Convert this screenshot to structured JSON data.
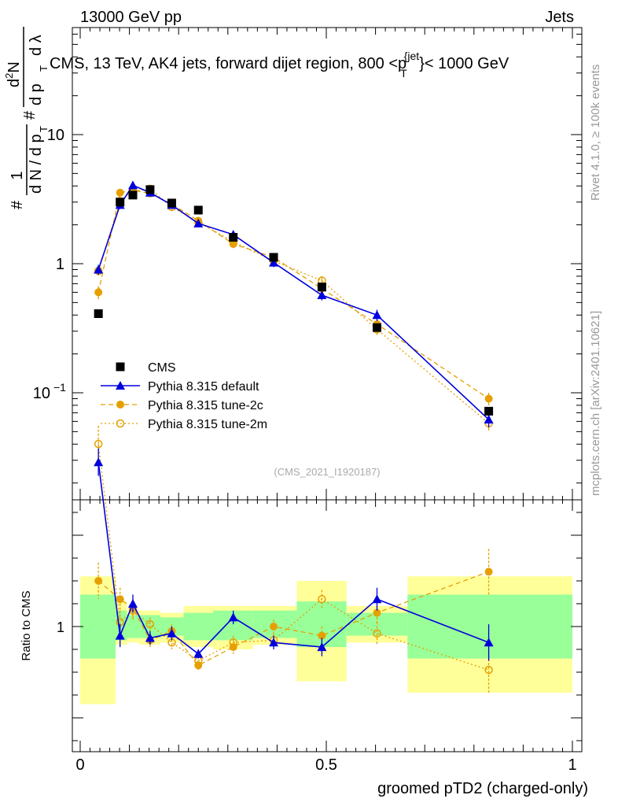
{
  "header": {
    "left": "13000 GeV pp",
    "right": "Jets"
  },
  "chart_data": [
    {
      "type": "scatter",
      "panel": "main",
      "title": "CMS, 13 TeV, AK4 jets, forward dijet region, 800 <p_T^{jet}< 1000 GeV",
      "title_parts": {
        "prefix": "CMS, 13 TeV, AK4 jets, forward dijet region, 800 <p",
        "sub": "T",
        "sup": "{jet",
        "suffix": "}< 1000 GeV"
      },
      "ylabel": "1 / dN/dp_T · d²N / dp_T dλ",
      "ylabel_parts": {
        "hash": "#",
        "one": "1",
        "dn": "d N / d p",
        "d2n": "d",
        "two": "2",
        "n": "N",
        "dp": "d p",
        "dl": "d λ",
        "t": "T"
      },
      "yscale": "log",
      "ylim": [
        0.02,
        80
      ],
      "yticks": [
        {
          "v": 0.1,
          "base": "10",
          "exp": "−1"
        },
        {
          "v": 1,
          "label": "1"
        },
        {
          "v": 10,
          "label": "10"
        }
      ],
      "xlim": [
        0,
        1
      ],
      "watermark": "(CMS_2021_I1920187)",
      "legend_position": "lower-left",
      "legend": [
        {
          "name": "CMS",
          "marker": "square",
          "color": "#000000"
        },
        {
          "name": "Pythia 8.315 default",
          "marker": "triangle",
          "color": "#0000dd"
        },
        {
          "name": "Pythia 8.315 tune-2c",
          "marker": "dot",
          "color": "#e69f00"
        },
        {
          "name": "Pythia 8.315 tune-2m",
          "marker": "circle",
          "color": "#e69f00"
        }
      ],
      "series": [
        {
          "name": "CMS",
          "x": [
            0.037,
            0.081,
            0.107,
            0.142,
            0.186,
            0.24,
            0.311,
            0.393,
            0.491,
            0.603,
            0.83
          ],
          "values": [
            0.41,
            3.0,
            3.4,
            3.75,
            2.95,
            2.6,
            1.6,
            1.12,
            0.66,
            0.32,
            0.072
          ]
        },
        {
          "name": "Pythia 8.315 default",
          "x": [
            0.037,
            0.081,
            0.107,
            0.142,
            0.186,
            0.24,
            0.311,
            0.393,
            0.491,
            0.603,
            0.83
          ],
          "values": [
            0.9,
            2.85,
            4.05,
            3.55,
            2.85,
            2.05,
            1.68,
            1.02,
            0.57,
            0.4,
            0.062
          ],
          "errors": [
            0.08,
            0.2,
            0.28,
            0.2,
            0.18,
            0.12,
            0.12,
            0.08,
            0.05,
            0.04,
            0.008
          ]
        },
        {
          "name": "Pythia 8.315 tune-2c",
          "x": [
            0.037,
            0.081,
            0.107,
            0.142,
            0.186,
            0.24,
            0.311,
            0.393,
            0.491,
            0.603,
            0.83
          ],
          "values": [
            0.6,
            3.55,
            3.7,
            3.5,
            2.9,
            2.15,
            1.42,
            1.12,
            0.64,
            0.34,
            0.09
          ],
          "errors": [
            0.07,
            0.22,
            0.25,
            0.2,
            0.18,
            0.12,
            0.1,
            0.08,
            0.05,
            0.04,
            0.01
          ]
        },
        {
          "name": "Pythia 8.315 tune-2m",
          "x": [
            0.037,
            0.081,
            0.107,
            0.142,
            0.186,
            0.24,
            0.311,
            0.393,
            0.491,
            0.603,
            0.83
          ],
          "values": [
            0.88,
            3.05,
            3.65,
            3.8,
            2.75,
            2.1,
            1.48,
            1.05,
            0.74,
            0.31,
            0.058
          ],
          "errors": [
            0.07,
            0.2,
            0.25,
            0.22,
            0.17,
            0.12,
            0.1,
            0.08,
            0.06,
            0.03,
            0.007
          ]
        }
      ]
    },
    {
      "type": "scatter",
      "panel": "ratio",
      "ylabel": "Ratio to CMS",
      "ylim": [
        0.55,
        1.92
      ],
      "yticks": [
        {
          "v": 1,
          "label": "1"
        }
      ],
      "xlabel": "groomed pTD2 (charged-only)",
      "xlim": [
        0,
        1
      ],
      "xticks": [
        {
          "v": 0,
          "label": "0"
        },
        {
          "v": 0.5,
          "label": "0.5"
        },
        {
          "v": 1,
          "label": "1"
        }
      ],
      "bands": [
        {
          "x0": 0.0,
          "x1": 0.072,
          "green": [
            0.86,
            1.14
          ],
          "yellow": [
            0.66,
            1.22
          ]
        },
        {
          "x0": 0.072,
          "x1": 0.095,
          "green": [
            0.94,
            1.07
          ],
          "yellow": [
            0.92,
            1.11
          ]
        },
        {
          "x0": 0.095,
          "x1": 0.12,
          "green": [
            0.95,
            1.05
          ],
          "yellow": [
            0.93,
            1.07
          ]
        },
        {
          "x0": 0.12,
          "x1": 0.163,
          "green": [
            0.95,
            1.05
          ],
          "yellow": [
            0.92,
            1.07
          ]
        },
        {
          "x0": 0.163,
          "x1": 0.21,
          "green": [
            0.96,
            1.04
          ],
          "yellow": [
            0.93,
            1.06
          ]
        },
        {
          "x0": 0.21,
          "x1": 0.27,
          "green": [
            0.94,
            1.06
          ],
          "yellow": [
            0.91,
            1.09
          ]
        },
        {
          "x0": 0.27,
          "x1": 0.351,
          "green": [
            0.94,
            1.07
          ],
          "yellow": [
            0.9,
            1.09
          ]
        },
        {
          "x0": 0.351,
          "x1": 0.44,
          "green": [
            0.95,
            1.07
          ],
          "yellow": [
            0.92,
            1.09
          ]
        },
        {
          "x0": 0.44,
          "x1": 0.541,
          "green": [
            0.91,
            1.11
          ],
          "yellow": [
            0.76,
            1.2
          ]
        },
        {
          "x0": 0.541,
          "x1": 0.665,
          "green": [
            0.96,
            1.06
          ],
          "yellow": [
            0.93,
            1.09
          ]
        },
        {
          "x0": 0.665,
          "x1": 1.0,
          "green": [
            0.86,
            1.14
          ],
          "yellow": [
            0.71,
            1.22
          ]
        }
      ],
      "series": [
        {
          "name": "Pythia 8.315 default",
          "x": [
            0.037,
            0.081,
            0.107,
            0.142,
            0.186,
            0.24,
            0.311,
            0.393,
            0.491,
            0.603,
            0.83
          ],
          "values": [
            1.72,
            0.96,
            1.1,
            0.95,
            0.97,
            0.88,
            1.04,
            0.93,
            0.91,
            1.12,
            0.93
          ],
          "errors": [
            0.06,
            0.05,
            0.04,
            0.03,
            0.03,
            0.02,
            0.03,
            0.03,
            0.04,
            0.05,
            0.08
          ]
        },
        {
          "name": "Pythia 8.315 tune-2c",
          "x": [
            0.037,
            0.081,
            0.107,
            0.142,
            0.186,
            0.24,
            0.311,
            0.393,
            0.491,
            0.603,
            0.83
          ],
          "values": [
            1.2,
            1.12,
            1.08,
            0.94,
            0.98,
            0.83,
            0.91,
            1.0,
            0.96,
            1.06,
            1.24
          ],
          "errors": [
            0.08,
            0.05,
            0.04,
            0.03,
            0.03,
            0.02,
            0.03,
            0.03,
            0.04,
            0.05,
            0.1
          ]
        },
        {
          "name": "Pythia 8.315 tune-2m",
          "x": [
            0.037,
            0.081,
            0.107,
            0.142,
            0.186,
            0.24,
            0.311,
            0.393,
            0.491,
            0.603,
            0.83
          ],
          "values": [
            1.8,
            1.02,
            1.07,
            1.01,
            0.93,
            0.85,
            0.93,
            0.94,
            1.12,
            0.97,
            0.81
          ],
          "errors": [
            0.08,
            0.05,
            0.04,
            0.03,
            0.03,
            0.02,
            0.03,
            0.03,
            0.04,
            0.05,
            0.1
          ]
        }
      ]
    }
  ],
  "side_labels": {
    "rivet": "Rivet 4.1.0, ≥ 100k events",
    "mcplots": "mcplots.cern.ch [arXiv:2401.10621]"
  }
}
